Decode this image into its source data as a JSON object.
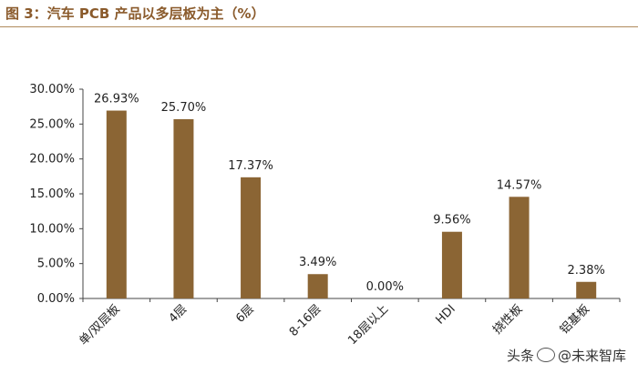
{
  "figure": {
    "title": "图 3：汽车 PCB 产品以多层板为主（%）"
  },
  "chart_data": {
    "type": "bar",
    "categories": [
      "单/双层板",
      "4层",
      "6层",
      "8-16层",
      "18层以上",
      "HDI",
      "挠性板",
      "铝基板"
    ],
    "values": [
      26.93,
      25.7,
      17.37,
      3.49,
      0.0,
      9.56,
      14.57,
      2.38
    ],
    "value_labels": [
      "26.93%",
      "25.70%",
      "17.37%",
      "3.49%",
      "0.00%",
      "9.56%",
      "14.57%",
      "2.38%"
    ],
    "yticks": [
      0,
      5,
      10,
      15,
      20,
      25,
      30
    ],
    "ytick_labels": [
      "0.00%",
      "5.00%",
      "10.00%",
      "15.00%",
      "20.00%",
      "25.00%",
      "30.00%"
    ],
    "ylim": [
      0,
      30
    ],
    "grid": false,
    "legend": "none",
    "bar_color": "#8b6534",
    "title": "",
    "xlabel": "",
    "ylabel": ""
  },
  "watermark": {
    "text_left": "头条",
    "text_right": "未来智库",
    "at": "@"
  }
}
